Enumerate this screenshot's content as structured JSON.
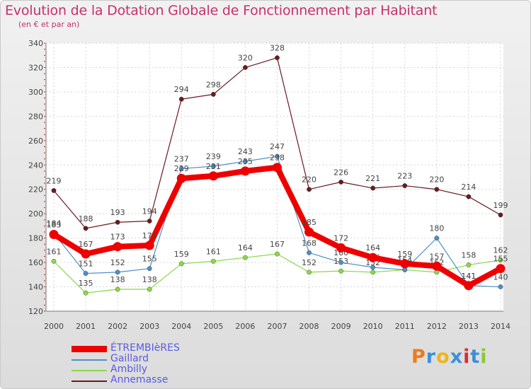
{
  "chart_data": {
    "type": "line",
    "title": "Evolution de la Dotation Globale de Fonctionnement par Habitant",
    "subtitle": "(en € et par an)",
    "xlabel": "",
    "ylabel": "",
    "categories": [
      "2000",
      "2001",
      "2002",
      "2003",
      "2004",
      "2005",
      "2006",
      "2007",
      "2008",
      "2009",
      "2010",
      "2011",
      "2012",
      "2013",
      "2014"
    ],
    "ylim": [
      120,
      340
    ],
    "yticks": [
      120,
      140,
      160,
      180,
      200,
      220,
      240,
      260,
      280,
      300,
      320,
      340
    ],
    "grid": true,
    "legend_position": "bottom-left",
    "series": [
      {
        "name": "Annemasse",
        "color": "#6b1a1f",
        "values": [
          219,
          188,
          193,
          194,
          294,
          298,
          320,
          328,
          220,
          226,
          221,
          223,
          220,
          214,
          199
        ]
      },
      {
        "name": "Ambilly",
        "color": "#8ad84a",
        "values": [
          161,
          135,
          138,
          138,
          159,
          161,
          164,
          167,
          152,
          153,
          152,
          154,
          152,
          158,
          162
        ]
      },
      {
        "name": "Gaillard",
        "color": "#4f8fc8",
        "values": [
          184,
          151,
          152,
          155,
          237,
          239,
          243,
          247,
          168,
          160,
          156,
          154,
          180,
          141,
          140
        ]
      },
      {
        "name": "ÉTREMBIèRES",
        "color": "#ee0000",
        "values": [
          183,
          167,
          173,
          174,
          229,
          231,
          235,
          238,
          185,
          172,
          164,
          159,
          157,
          141,
          155
        ]
      }
    ]
  },
  "legend": {
    "items": [
      {
        "label": "ÉTREMBIèRES",
        "color": "#ee0000",
        "thick": true
      },
      {
        "label": "Gaillard",
        "color": "#4f8fc8",
        "thick": false
      },
      {
        "label": "Ambilly",
        "color": "#8ad84a",
        "thick": false
      },
      {
        "label": "Annemasse",
        "color": "#6b1a1f",
        "thick": false
      }
    ]
  },
  "brand": {
    "name": "Proxiti"
  }
}
